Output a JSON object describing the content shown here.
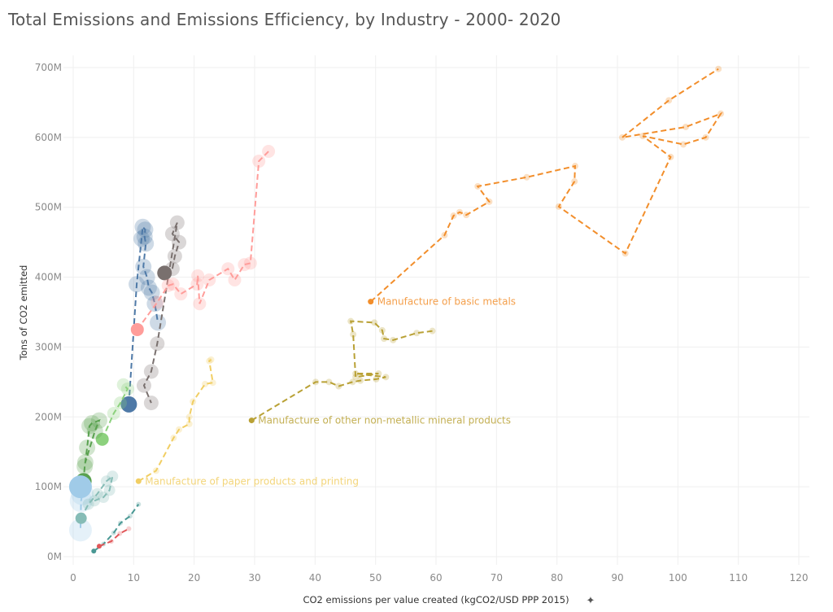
{
  "title": "Total Emissions and Emissions Efficiency, by Industry - 2000- 2020",
  "chart_data": {
    "type": "scatter",
    "connected": true,
    "line_style": "dashed",
    "title": "Total Emissions and Emissions Efficiency, by Industry - 2000- 2020",
    "xlabel": "CO2 emissions per value created (kgCO2/USD PPP 2015)",
    "ylabel": "Tons of CO2 emitted",
    "xlim": [
      0,
      120
    ],
    "ylim": [
      0,
      700000000
    ],
    "x_ticks": [
      "0",
      "10",
      "20",
      "30",
      "40",
      "50",
      "60",
      "70",
      "80",
      "90",
      "100",
      "110",
      "120"
    ],
    "y_ticks": [
      "0M",
      "100M",
      "200M",
      "300M",
      "400M",
      "500M",
      "600M",
      "700M"
    ],
    "grid": true,
    "xlabel_icon": "pin-icon",
    "series": [
      {
        "label": "Manufacture of basic metals",
        "color": "#f28e2b",
        "x": [
          49.2,
          61.4,
          62.9,
          63.9,
          65.0,
          68.8,
          66.9,
          75.0,
          83.0,
          82.9,
          80.3,
          91.3,
          98.8,
          94.2,
          100.9,
          104.6,
          107.1,
          101.3,
          90.8,
          98.5,
          106.7
        ],
        "y": [
          365,
          460,
          488,
          493,
          489,
          508,
          530,
          543,
          559,
          537,
          501,
          434,
          572,
          602,
          590,
          600,
          634,
          615,
          600,
          653,
          698
        ]
      },
      {
        "label": "Manufacture of other non-metallic mineral products",
        "color": "#b9a135",
        "x": [
          29.5,
          40.1,
          42.3,
          43.9,
          46.2,
          47.5,
          50.1,
          51.7,
          46.7,
          50.5,
          46.7,
          46.3,
          45.9,
          49.8,
          51.1,
          51.4,
          52.9,
          56.8,
          59.4
        ],
        "y": [
          195,
          250,
          250,
          244,
          250,
          252,
          254,
          257,
          262,
          262,
          257,
          318,
          337,
          335,
          324,
          312,
          310,
          320,
          323
        ]
      },
      {
        "label": "Manufacture of paper products and printing",
        "color": "#f1ce63",
        "x": [
          10.8,
          13.7,
          16.6,
          17.5,
          19.2,
          19.2,
          19.8,
          21.8,
          23.1,
          22.5,
          22.8
        ],
        "y": [
          108,
          123,
          170,
          182,
          190,
          200,
          222,
          247,
          249,
          280,
          282
        ]
      },
      {
        "color": "#4e79a7",
        "x": [
          9.2,
          10.5,
          11.3,
          11.5,
          11.9,
          11.8,
          12.0,
          11.6,
          12.2,
          12.5,
          13.0,
          13.5,
          14.0
        ],
        "y": [
          218,
          390,
          455,
          472,
          468,
          458,
          448,
          415,
          400,
          385,
          378,
          362,
          335
        ]
      },
      {
        "color": "#79706e",
        "x": [
          15.1,
          16.4,
          16.8,
          17.5,
          16.4,
          17.2,
          13.9,
          12.9,
          11.7,
          12.9
        ],
        "y": [
          406,
          412,
          430,
          450,
          462,
          478,
          305,
          265,
          245,
          220
        ]
      },
      {
        "color": "#ff9d9a",
        "x": [
          10.6,
          13.9,
          15.7,
          16.5,
          17.8,
          20.5,
          20.6,
          20.9,
          22.5,
          25.6,
          26.7,
          28.3,
          29.3,
          30.7,
          32.3
        ],
        "y": [
          325,
          364,
          388,
          390,
          376,
          390,
          402,
          362,
          396,
          412,
          396,
          418,
          420,
          566,
          580
        ]
      },
      {
        "color": "#8cd17d",
        "x": [
          4.8,
          6.7,
          7.8,
          9.0,
          8.3
        ],
        "y": [
          168,
          205,
          220,
          240,
          246
        ]
      },
      {
        "color": "#59a14f",
        "x": [
          1.7,
          1.9,
          2.3,
          2.7,
          3.1,
          4.3,
          3.6,
          2.0
        ],
        "y": [
          108,
          129,
          156,
          187,
          191,
          195,
          180,
          135
        ]
      },
      {
        "color": "#a0cbe8",
        "x": [
          1.2,
          1.5,
          1.3,
          1.2
        ],
        "y": [
          100,
          90,
          80,
          38
        ]
      },
      {
        "color": "#86bcb6",
        "x": [
          1.3,
          2.5,
          4.0,
          5.5,
          6.5,
          6.0,
          5.0,
          3.5
        ],
        "y": [
          55,
          75,
          90,
          108,
          115,
          95,
          85,
          80
        ]
      },
      {
        "color": "#499894",
        "x": [
          3.4,
          5.0,
          6.7,
          7.8,
          9.4,
          10.8
        ],
        "y": [
          8,
          18,
          34,
          48,
          58,
          75
        ]
      },
      {
        "color": "#e15759",
        "x": [
          4.3,
          6.3,
          7.7,
          9.2
        ],
        "y": [
          15,
          22,
          33,
          40
        ]
      }
    ],
    "y_units": "millions of tons"
  }
}
